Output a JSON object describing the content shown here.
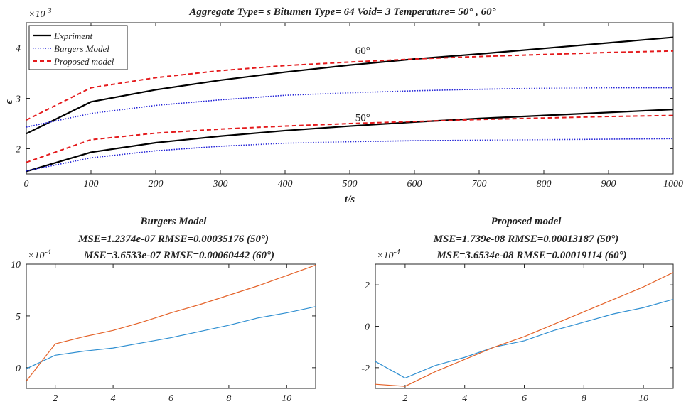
{
  "colors": {
    "experiment": "#000000",
    "burgers": "#1f1fd6",
    "proposed": "#e41a1c",
    "residual_50": "#2f8fd1",
    "residual_60": "#e4632a",
    "axis": "#262626"
  },
  "chart_data": [
    {
      "type": "line",
      "title": "Aggregate Type= s Bitumen Type= 64 Void= 3 Temperature= 50° , 60°",
      "xlabel": "t/s",
      "ylabel": "ϵ",
      "exponent_label": "×10",
      "exponent_power": "-3",
      "xlim": [
        0,
        1000
      ],
      "ylim": [
        1.5,
        4.5
      ],
      "xticks": [
        "0",
        "100",
        "200",
        "300",
        "400",
        "500",
        "600",
        "700",
        "800",
        "900",
        "1000"
      ],
      "yticks": [
        "2",
        "3",
        "4"
      ],
      "legend_position": "top-left",
      "legend": [
        "Expriment",
        "Burgers Model",
        "Proposed model"
      ],
      "annotations": [
        {
          "text": "60°",
          "x": 520,
          "y": 3.88
        },
        {
          "text": "50°",
          "x": 520,
          "y": 2.55
        }
      ],
      "x": [
        0,
        100,
        200,
        300,
        400,
        500,
        600,
        700,
        800,
        900,
        1000
      ],
      "series": [
        {
          "name": "Expriment",
          "style": "solid",
          "values": [
            2.3,
            2.93,
            3.17,
            3.36,
            3.52,
            3.66,
            3.78,
            3.88,
            3.99,
            4.1,
            4.21
          ]
        },
        {
          "name": "Burgers Model",
          "style": "dotted",
          "values": [
            2.43,
            2.7,
            2.86,
            2.97,
            3.06,
            3.11,
            3.15,
            3.18,
            3.2,
            3.21,
            3.21
          ]
        },
        {
          "name": "Proposed model",
          "style": "dashed",
          "values": [
            2.57,
            3.21,
            3.41,
            3.55,
            3.65,
            3.72,
            3.78,
            3.83,
            3.87,
            3.91,
            3.94
          ]
        },
        {
          "style": "solid",
          "values": [
            1.55,
            1.93,
            2.12,
            2.25,
            2.36,
            2.45,
            2.53,
            2.6,
            2.66,
            2.72,
            2.78
          ]
        },
        {
          "style": "dotted",
          "values": [
            1.56,
            1.82,
            1.96,
            2.05,
            2.11,
            2.14,
            2.16,
            2.17,
            2.18,
            2.19,
            2.2
          ]
        },
        {
          "style": "dashed",
          "values": [
            1.73,
            2.18,
            2.31,
            2.39,
            2.45,
            2.5,
            2.54,
            2.58,
            2.61,
            2.64,
            2.66
          ]
        }
      ]
    },
    {
      "type": "line",
      "title": "Burgers Model",
      "subtitle_lines": [
        "MSE=1.2374e-07  RMSE=0.00035176   (50°)",
        "MSE=3.6533e-07  RMSE=0.00060442   (60°)"
      ],
      "exponent_label": "×10",
      "exponent_power": "-4",
      "xlim": [
        1,
        11
      ],
      "ylim": [
        -2,
        10
      ],
      "xticks": [
        "2",
        "4",
        "6",
        "8",
        "10"
      ],
      "yticks": [
        "0",
        "5",
        "10"
      ],
      "x": [
        1,
        2,
        3,
        4,
        5,
        6,
        7,
        8,
        9,
        10,
        11
      ],
      "series": [
        {
          "color": "residual_50",
          "values": [
            -0.1,
            1.2,
            1.6,
            1.9,
            2.4,
            2.9,
            3.5,
            4.1,
            4.8,
            5.3,
            5.9
          ]
        },
        {
          "color": "residual_60",
          "values": [
            -1.3,
            2.3,
            3.0,
            3.6,
            4.4,
            5.3,
            6.1,
            7.0,
            7.9,
            8.9,
            9.9
          ]
        }
      ]
    },
    {
      "type": "line",
      "title": "Proposed model",
      "subtitle_lines": [
        "MSE=1.739e-08  RMSE=0.00013187  (50°)",
        "MSE=3.6534e-08  RMSE=0.00019114  (60°)"
      ],
      "exponent_label": "×10",
      "exponent_power": "-4",
      "xlim": [
        1,
        11
      ],
      "ylim": [
        -3,
        3
      ],
      "xticks": [
        "2",
        "4",
        "6",
        "8",
        "10"
      ],
      "yticks": [
        "-2",
        "0",
        "2"
      ],
      "x": [
        1,
        2,
        3,
        4,
        5,
        6,
        7,
        8,
        9,
        10,
        11
      ],
      "series": [
        {
          "color": "residual_50",
          "values": [
            -1.7,
            -2.5,
            -1.9,
            -1.5,
            -1.0,
            -0.7,
            -0.2,
            0.2,
            0.6,
            0.9,
            1.3
          ]
        },
        {
          "color": "residual_60",
          "values": [
            -2.8,
            -2.9,
            -2.2,
            -1.6,
            -1.0,
            -0.5,
            0.1,
            0.7,
            1.3,
            1.9,
            2.6
          ]
        }
      ]
    }
  ]
}
